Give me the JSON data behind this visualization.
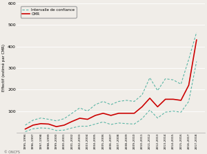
{
  "years": [
    "1995-1996",
    "1996-1997",
    "1997-1998",
    "1998-1999",
    "1999-2000",
    "2000-2001",
    "2001-2002",
    "2002-2003",
    "2003-2004",
    "2004-2005",
    "2005-2006",
    "2006-2007",
    "2007-2008",
    "2008-2009",
    "2009-2010",
    "2010-2011",
    "2011-2012",
    "2012-2013",
    "2013-2014",
    "2014-2015",
    "2015-2016",
    "2016-2017",
    "2017-2018"
  ],
  "cmr": [
    17,
    35,
    42,
    40,
    28,
    35,
    52,
    67,
    62,
    80,
    90,
    80,
    90,
    90,
    90,
    120,
    160,
    120,
    155,
    155,
    150,
    220,
    430
  ],
  "ci_upper": [
    35,
    58,
    68,
    62,
    55,
    65,
    90,
    115,
    100,
    130,
    145,
    130,
    145,
    150,
    145,
    175,
    255,
    195,
    250,
    245,
    225,
    340,
    465
  ],
  "ci_lower": [
    5,
    18,
    22,
    20,
    10,
    12,
    22,
    30,
    30,
    40,
    50,
    38,
    45,
    42,
    40,
    65,
    105,
    68,
    95,
    100,
    95,
    145,
    330
  ],
  "ylabel": "Effectif (estimé par CMR)",
  "ylim": [
    0,
    600
  ],
  "yticks": [
    100,
    200,
    300,
    400,
    500,
    600
  ],
  "legend_labels": [
    "Intervalle de confiance",
    "CMR"
  ],
  "cmr_color": "#cc0000",
  "ci_color": "#5ab5a5",
  "background_color": "#f0ede8",
  "source_text": "© ONCFS",
  "grid_color": "#ffffff"
}
